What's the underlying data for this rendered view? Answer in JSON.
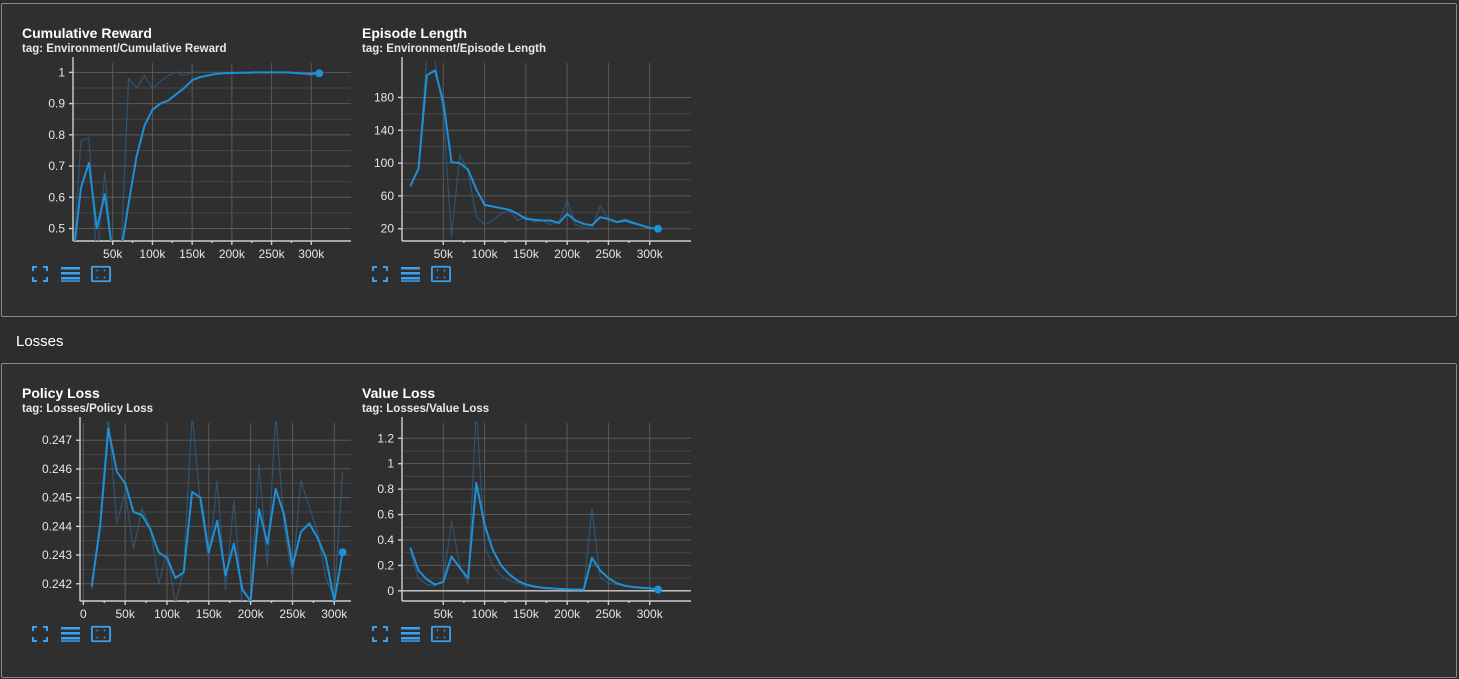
{
  "sections": {
    "losses_title": "Losses"
  },
  "colors": {
    "accent": "#1e90d8",
    "raw": "#2f5d80",
    "grid": "#5a5a5a",
    "background": "#2f2f2f"
  },
  "icons": [
    "fit-domain-icon",
    "toggle-log-icon",
    "expand-icon"
  ],
  "cards": {
    "cumulative_reward": {
      "title": "Cumulative Reward",
      "tag": "tag: Environment/Cumulative Reward"
    },
    "episode_length": {
      "title": "Episode Length",
      "tag": "tag: Environment/Episode Length"
    },
    "policy_loss": {
      "title": "Policy Loss",
      "tag": "tag: Losses/Policy Loss"
    },
    "value_loss": {
      "title": "Value Loss",
      "tag": "tag: Losses/Value Loss"
    }
  },
  "chart_data": [
    {
      "id": "cumulative_reward",
      "type": "line",
      "title": "Cumulative Reward",
      "xlim": [
        0,
        350000
      ],
      "ylim": [
        0.46,
        1.03
      ],
      "xticks": [
        50000,
        100000,
        150000,
        200000,
        250000,
        300000
      ],
      "xtick_labels": [
        "50k",
        "100k",
        "150k",
        "200k",
        "250k",
        "300k"
      ],
      "yticks": [
        0.5,
        0.6,
        0.7,
        0.8,
        0.9,
        1
      ],
      "ytick_labels": [
        "0.5",
        "0.6",
        "0.7",
        "0.8",
        "0.9",
        "1"
      ],
      "raw_x": [
        0,
        10000,
        20000,
        30000,
        40000,
        50000,
        60000,
        70000,
        80000,
        90000,
        100000,
        110000,
        120000,
        130000,
        140000,
        150000,
        160000,
        170000,
        180000,
        190000,
        200000,
        210000,
        220000,
        230000,
        240000,
        250000,
        260000,
        270000,
        280000,
        290000,
        300000,
        310000
      ],
      "raw_y": [
        0.4,
        0.78,
        0.79,
        0.4,
        0.68,
        0.4,
        0.4,
        0.98,
        0.95,
        0.99,
        0.95,
        0.97,
        0.99,
        1.0,
        0.99,
        1.0,
        1.0,
        1.0,
        1.0,
        1.0,
        1.0,
        1.0,
        1.0,
        1.0,
        1.0,
        1.0,
        1.0,
        1.0,
        1.0,
        1.0,
        0.99,
        1.0
      ],
      "smoothed_x": [
        0,
        10000,
        20000,
        30000,
        40000,
        50000,
        60000,
        70000,
        80000,
        90000,
        100000,
        110000,
        120000,
        130000,
        140000,
        150000,
        160000,
        170000,
        180000,
        190000,
        200000,
        210000,
        220000,
        230000,
        240000,
        250000,
        260000,
        270000,
        280000,
        290000,
        300000,
        310000
      ],
      "smoothed_y": [
        0.4,
        0.63,
        0.71,
        0.5,
        0.61,
        0.42,
        0.42,
        0.58,
        0.73,
        0.83,
        0.88,
        0.9,
        0.91,
        0.93,
        0.95,
        0.975,
        0.985,
        0.99,
        0.995,
        0.997,
        0.998,
        0.999,
        0.999,
        1.0,
        1.0,
        1.0,
        1.0,
        1.0,
        0.998,
        0.996,
        0.995,
        0.997
      ]
    },
    {
      "id": "episode_length",
      "type": "line",
      "title": "Episode Length",
      "xlim": [
        0,
        350000
      ],
      "ylim": [
        5,
        222
      ],
      "xticks": [
        50000,
        100000,
        150000,
        200000,
        250000,
        300000
      ],
      "xtick_labels": [
        "50k",
        "100k",
        "150k",
        "200k",
        "250k",
        "300k"
      ],
      "yticks": [
        20,
        60,
        100,
        140,
        180
      ],
      "ytick_labels": [
        "20",
        "60",
        "100",
        "140",
        "180"
      ],
      "raw_x": [
        10000,
        20000,
        30000,
        40000,
        50000,
        60000,
        70000,
        80000,
        90000,
        100000,
        110000,
        120000,
        130000,
        140000,
        150000,
        160000,
        170000,
        180000,
        190000,
        200000,
        210000,
        220000,
        230000,
        240000,
        250000,
        260000,
        270000,
        280000,
        290000,
        300000,
        310000
      ],
      "raw_y": [
        70,
        95,
        230,
        225,
        160,
        10,
        110,
        90,
        35,
        25,
        30,
        38,
        42,
        30,
        35,
        28,
        30,
        25,
        28,
        55,
        25,
        22,
        20,
        48,
        30,
        28,
        32,
        28,
        25,
        20,
        20
      ],
      "smoothed_x": [
        10000,
        20000,
        30000,
        40000,
        50000,
        60000,
        70000,
        80000,
        90000,
        100000,
        110000,
        120000,
        130000,
        140000,
        150000,
        160000,
        170000,
        180000,
        190000,
        200000,
        210000,
        220000,
        230000,
        240000,
        250000,
        260000,
        270000,
        280000,
        290000,
        300000,
        310000
      ],
      "smoothed_y": [
        72,
        93,
        207,
        213,
        175,
        101,
        100,
        92,
        68,
        49,
        47,
        45,
        43,
        38,
        32,
        31,
        30,
        30,
        27,
        38,
        30,
        26,
        24,
        34,
        32,
        28,
        30,
        27,
        24,
        21,
        20
      ]
    },
    {
      "id": "policy_loss",
      "type": "line",
      "title": "Policy Loss",
      "xlim": [
        -4000,
        320000
      ],
      "ylim": [
        0.2414,
        0.2476
      ],
      "xticks": [
        0,
        50000,
        100000,
        150000,
        200000,
        250000,
        300000
      ],
      "xtick_labels": [
        "0",
        "50k",
        "100k",
        "150k",
        "200k",
        "250k",
        "300k"
      ],
      "yticks": [
        0.242,
        0.243,
        0.244,
        0.245,
        0.246,
        0.247
      ],
      "ytick_labels": [
        "0.242",
        "0.243",
        "0.244",
        "0.245",
        "0.246",
        "0.247"
      ],
      "raw_x": [
        10000,
        20000,
        30000,
        40000,
        50000,
        60000,
        70000,
        80000,
        90000,
        100000,
        110000,
        120000,
        130000,
        140000,
        150000,
        160000,
        170000,
        180000,
        190000,
        200000,
        210000,
        220000,
        230000,
        240000,
        250000,
        260000,
        270000,
        280000,
        290000,
        300000,
        310000
      ],
      "raw_y": [
        0.2418,
        0.2442,
        0.2478,
        0.2441,
        0.2452,
        0.2432,
        0.2446,
        0.244,
        0.242,
        0.2431,
        0.2413,
        0.2425,
        0.2479,
        0.2448,
        0.2428,
        0.2456,
        0.2418,
        0.2449,
        0.2412,
        0.2415,
        0.2462,
        0.2426,
        0.2479,
        0.244,
        0.2422,
        0.2456,
        0.2447,
        0.2438,
        0.2422,
        0.2415,
        0.2459
      ],
      "smoothed_x": [
        10000,
        20000,
        30000,
        40000,
        50000,
        60000,
        70000,
        80000,
        90000,
        100000,
        110000,
        120000,
        130000,
        140000,
        150000,
        160000,
        170000,
        180000,
        190000,
        200000,
        210000,
        220000,
        230000,
        240000,
        250000,
        260000,
        270000,
        280000,
        290000,
        300000,
        310000
      ],
      "smoothed_y": [
        0.2419,
        0.244,
        0.2474,
        0.2459,
        0.2455,
        0.2445,
        0.2444,
        0.2439,
        0.2431,
        0.2429,
        0.2422,
        0.2424,
        0.2452,
        0.245,
        0.2431,
        0.2442,
        0.2423,
        0.2434,
        0.2418,
        0.2414,
        0.2446,
        0.2434,
        0.2453,
        0.2444,
        0.2426,
        0.2438,
        0.2441,
        0.2436,
        0.2429,
        0.2414,
        0.2431
      ]
    },
    {
      "id": "value_loss",
      "type": "line",
      "title": "Value Loss",
      "xlim": [
        0,
        350000
      ],
      "ylim": [
        -0.08,
        1.32
      ],
      "xticks": [
        50000,
        100000,
        150000,
        200000,
        250000,
        300000
      ],
      "xtick_labels": [
        "50k",
        "100k",
        "150k",
        "200k",
        "250k",
        "300k"
      ],
      "yticks": [
        0,
        0.2,
        0.4,
        0.6,
        0.8,
        1,
        1.2
      ],
      "ytick_labels": [
        "0",
        "0.2",
        "0.4",
        "0.6",
        "0.8",
        "1",
        "1.2"
      ],
      "raw_x": [
        10000,
        20000,
        30000,
        40000,
        50000,
        60000,
        70000,
        80000,
        90000,
        100000,
        110000,
        120000,
        130000,
        140000,
        150000,
        160000,
        170000,
        180000,
        190000,
        200000,
        210000,
        220000,
        230000,
        240000,
        250000,
        260000,
        270000,
        280000,
        290000,
        300000,
        310000
      ],
      "raw_y": [
        0.3,
        0.1,
        0.05,
        0.04,
        0.08,
        0.55,
        0.2,
        0.05,
        1.45,
        0.35,
        0.2,
        0.12,
        0.08,
        0.06,
        0.04,
        0.03,
        0.02,
        0.02,
        0.01,
        0.01,
        0.01,
        0.01,
        0.65,
        0.1,
        0.06,
        0.05,
        0.04,
        0.03,
        0.02,
        0.02,
        0.02
      ],
      "smoothed_x": [
        10000,
        20000,
        30000,
        40000,
        50000,
        60000,
        70000,
        80000,
        90000,
        100000,
        110000,
        120000,
        130000,
        140000,
        150000,
        160000,
        170000,
        180000,
        190000,
        200000,
        210000,
        220000,
        230000,
        240000,
        250000,
        260000,
        270000,
        280000,
        290000,
        300000,
        310000
      ],
      "smoothed_y": [
        0.34,
        0.16,
        0.09,
        0.05,
        0.07,
        0.27,
        0.18,
        0.1,
        0.85,
        0.52,
        0.32,
        0.2,
        0.13,
        0.08,
        0.05,
        0.035,
        0.025,
        0.02,
        0.015,
        0.012,
        0.01,
        0.01,
        0.26,
        0.16,
        0.1,
        0.06,
        0.04,
        0.03,
        0.025,
        0.02,
        0.01
      ]
    }
  ]
}
